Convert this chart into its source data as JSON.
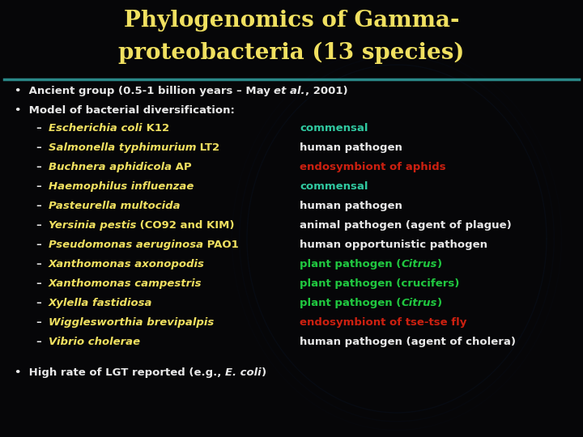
{
  "title_line1": "Phylogenomics of Gamma-",
  "title_line2": "proteobacteria (13 species)",
  "title_color": "#f0e060",
  "background_color": "#060608",
  "divider_color": "#2a8888",
  "bullet_color": "#e8e8e8",
  "species": [
    {
      "italic": "Escherichia coli",
      "roman": " K12",
      "desc_pre": "commensal",
      "desc_italic": "",
      "desc_post": "",
      "name_color": "#f0e060",
      "desc_color": "#30c8a0"
    },
    {
      "italic": "Salmonella typhimurium",
      "roman": " LT2",
      "desc_pre": "human pathogen",
      "desc_italic": "",
      "desc_post": "",
      "name_color": "#f0e060",
      "desc_color": "#e8e8e8"
    },
    {
      "italic": "Buchnera aphidicola",
      "roman": " AP",
      "desc_pre": "endosymbiont of aphids",
      "desc_italic": "",
      "desc_post": "",
      "name_color": "#f0e060",
      "desc_color": "#cc2010"
    },
    {
      "italic": "Haemophilus influenzae",
      "roman": "",
      "desc_pre": "commensal",
      "desc_italic": "",
      "desc_post": "",
      "name_color": "#f0e060",
      "desc_color": "#30c8a0"
    },
    {
      "italic": "Pasteurella multocida",
      "roman": "",
      "desc_pre": "human pathogen",
      "desc_italic": "",
      "desc_post": "",
      "name_color": "#f0e060",
      "desc_color": "#e8e8e8"
    },
    {
      "italic": "Yersinia pestis",
      "roman": " (CO92 and KIM)",
      "desc_pre": "animal pathogen (agent of plague)",
      "desc_italic": "",
      "desc_post": "",
      "name_color": "#f0e060",
      "desc_color": "#e8e8e8"
    },
    {
      "italic": "Pseudomonas aeruginosa",
      "roman": " PAO1",
      "desc_pre": "human opportunistic pathogen",
      "desc_italic": "",
      "desc_post": "",
      "name_color": "#f0e060",
      "desc_color": "#e8e8e8"
    },
    {
      "italic": "Xanthomonas axonopodis",
      "roman": "",
      "desc_pre": "plant pathogen (",
      "desc_italic": "Citrus",
      "desc_post": ")",
      "name_color": "#f0e060",
      "desc_color": "#20c840"
    },
    {
      "italic": "Xanthomonas campestris",
      "roman": "",
      "desc_pre": "plant pathogen (crucifers)",
      "desc_italic": "",
      "desc_post": "",
      "name_color": "#f0e060",
      "desc_color": "#20c840"
    },
    {
      "italic": "Xylella fastidiosa",
      "roman": "",
      "desc_pre": "plant pathogen (",
      "desc_italic": "Citrus",
      "desc_post": ")",
      "name_color": "#f0e060",
      "desc_color": "#20c840"
    },
    {
      "italic": "Wigglesworthia brevipalpis",
      "roman": "",
      "desc_pre": "endosymbiont of tse-tse fly",
      "desc_italic": "",
      "desc_post": "",
      "name_color": "#f0e060",
      "desc_color": "#cc2010"
    },
    {
      "italic": "Vibrio cholerae",
      "roman": "",
      "desc_pre": "human pathogen (agent of cholera)",
      "desc_italic": "",
      "desc_post": "",
      "name_color": "#f0e060",
      "desc_color": "#e8e8e8"
    }
  ],
  "figwidth": 7.2,
  "figheight": 5.4,
  "dpi": 100
}
